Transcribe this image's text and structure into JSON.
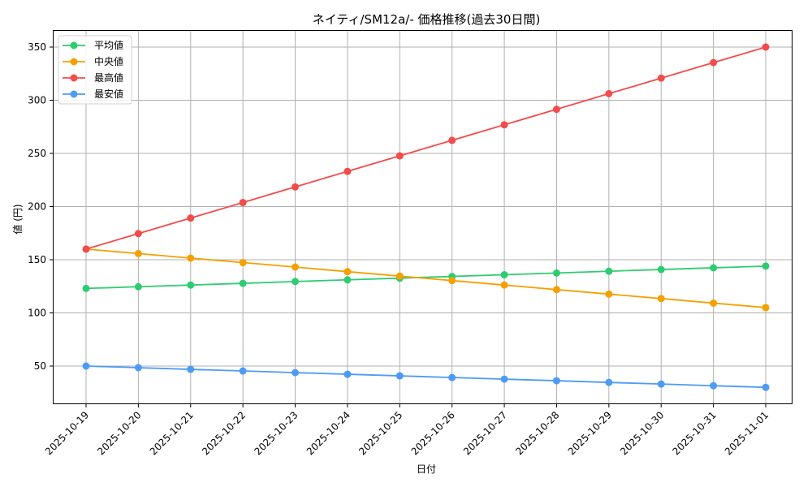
{
  "chart_data": {
    "type": "line",
    "title": "ネイティ/SM12a/- 価格推移(過去30日間)",
    "xlabel": "日付",
    "ylabel": "値 (円)",
    "ylim": [
      14,
      366
    ],
    "yticks": [
      50,
      100,
      150,
      200,
      250,
      300,
      350
    ],
    "grid": true,
    "legend_position": "upper left",
    "x": [
      "2025-10-19",
      "2025-10-20",
      "2025-10-21",
      "2025-10-22",
      "2025-10-23",
      "2025-10-24",
      "2025-10-25",
      "2025-10-26",
      "2025-10-27",
      "2025-10-28",
      "2025-10-29",
      "2025-10-30",
      "2025-10-31",
      "2025-11-01"
    ],
    "series": [
      {
        "name": "平均値",
        "color": "#2ecc71",
        "values": [
          123.0,
          124.6,
          126.2,
          127.8,
          129.5,
          131.1,
          132.7,
          134.3,
          135.9,
          137.5,
          139.2,
          140.8,
          142.4,
          144.0
        ]
      },
      {
        "name": "中央値",
        "color": "#f5a000",
        "values": [
          160.0,
          155.8,
          151.5,
          147.3,
          143.1,
          138.8,
          134.6,
          130.4,
          126.2,
          121.9,
          117.7,
          113.5,
          109.2,
          105.0
        ]
      },
      {
        "name": "最高値",
        "color": "#f44b4b",
        "values": [
          160.0,
          174.6,
          189.2,
          203.8,
          218.5,
          233.1,
          247.7,
          262.3,
          276.9,
          291.5,
          306.2,
          320.8,
          335.4,
          350.0
        ]
      },
      {
        "name": "最安値",
        "color": "#4d9bf5",
        "values": [
          50.0,
          48.5,
          46.9,
          45.4,
          43.8,
          42.3,
          40.8,
          39.2,
          37.7,
          36.2,
          34.6,
          33.1,
          31.5,
          30.0
        ]
      }
    ]
  }
}
